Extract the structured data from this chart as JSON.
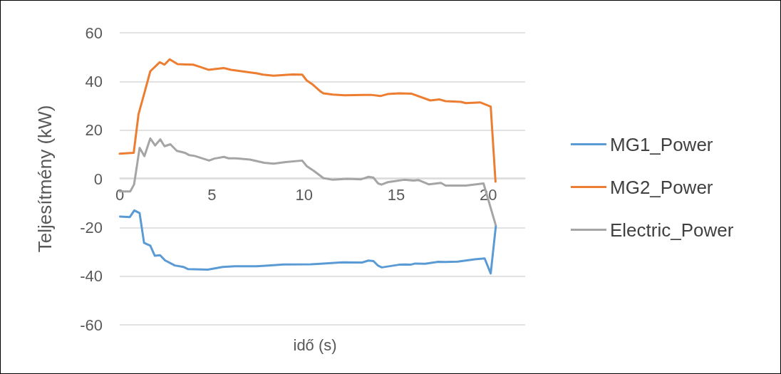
{
  "chart_data": {
    "type": "line",
    "xlabel": "idő (s)",
    "ylabel": "Teljesítmény (kW)",
    "xlim": [
      0,
      22
    ],
    "xticks": [
      0,
      5,
      10,
      15,
      20
    ],
    "ylim": [
      -60,
      60
    ],
    "yticks": [
      -60,
      -40,
      -20,
      0,
      20,
      40,
      60
    ],
    "grid": "y",
    "legend": "right",
    "marker": "none",
    "line_style": "solid",
    "series": [
      {
        "name": "MG1_Power",
        "color": "#5b9bd5",
        "x": [
          0.02,
          0.55,
          0.79,
          1.08,
          1.32,
          1.66,
          1.9,
          2.19,
          2.46,
          2.99,
          3.45,
          3.72,
          4.78,
          5.58,
          6.24,
          7.43,
          8.06,
          8.9,
          10.37,
          10.9,
          12.09,
          13.15,
          13.49,
          13.77,
          14.02,
          14.22,
          15.15,
          15.5,
          15.77,
          16.03,
          16.57,
          17.28,
          17.68,
          18.34,
          19.27,
          19.8,
          20.13,
          20.41
        ],
        "values": [
          -15.5,
          -15.7,
          -13.0,
          -14.1,
          -26.3,
          -27.5,
          -31.6,
          -31.4,
          -33.5,
          -35.6,
          -36.2,
          -37.1,
          -37.3,
          -36.2,
          -35.9,
          -35.9,
          -35.6,
          -35.2,
          -35.1,
          -34.9,
          -34.3,
          -34.4,
          -33.6,
          -33.8,
          -35.7,
          -36.4,
          -35.3,
          -35.2,
          -35.3,
          -34.8,
          -34.9,
          -34.1,
          -34.2,
          -34.0,
          -33.1,
          -32.7,
          -38.9,
          -19.3
        ]
      },
      {
        "name": "MG2_Power",
        "color": "#ed7d31",
        "x": [
          0,
          0.76,
          1.02,
          1.34,
          1.66,
          2.17,
          2.43,
          2.71,
          3.14,
          3.6,
          3.98,
          4.36,
          4.81,
          5.65,
          6.04,
          7.45,
          7.77,
          8.35,
          9.38,
          9.9,
          10.15,
          10.48,
          10.86,
          11.05,
          11.57,
          12.2,
          13.63,
          14.14,
          14.53,
          15.17,
          15.82,
          16.85,
          17.36,
          17.68,
          18.52,
          18.78,
          19.55,
          20.13,
          20.39
        ],
        "values": [
          10.3,
          10.7,
          26.5,
          35.3,
          44.2,
          47.9,
          46.9,
          49.1,
          47.1,
          47.0,
          46.9,
          46.0,
          44.8,
          45.5,
          44.8,
          43.3,
          42.8,
          42.4,
          42.9,
          42.8,
          40.4,
          38.7,
          36.1,
          35.1,
          34.6,
          34.3,
          34.5,
          34.0,
          34.8,
          35.1,
          35.0,
          32.2,
          32.6,
          31.9,
          31.6,
          31.1,
          31.4,
          29.7,
          -1.2
        ]
      },
      {
        "name": "Electric_Power",
        "color": "#a5a5a5",
        "x": [
          0,
          0.57,
          0.78,
          1.08,
          1.34,
          1.66,
          1.92,
          2.2,
          2.43,
          2.75,
          3.1,
          3.53,
          3.78,
          4.07,
          4.85,
          5.13,
          5.65,
          5.91,
          6.3,
          7.07,
          7.84,
          8.35,
          9.0,
          9.9,
          10.15,
          10.54,
          11.05,
          11.57,
          12.34,
          13.1,
          13.5,
          13.76,
          14.02,
          14.2,
          14.53,
          15.43,
          15.95,
          16.2,
          16.78,
          17.43,
          17.68,
          18.78,
          19.74,
          20.4
        ],
        "values": [
          -5.2,
          -5.2,
          -2.3,
          12.7,
          9.3,
          16.6,
          13.7,
          16.2,
          13.4,
          14.2,
          11.5,
          10.7,
          9.7,
          9.4,
          7.5,
          8.3,
          9.0,
          8.4,
          8.4,
          7.9,
          6.6,
          6.2,
          6.9,
          7.5,
          5.2,
          3.2,
          0.3,
          -0.4,
          0,
          -0.2,
          0.8,
          0.5,
          -1.9,
          -2.4,
          -1.4,
          -0.4,
          -0.7,
          -0.5,
          -2.3,
          -1.7,
          -2.8,
          -2.8,
          -1.9,
          -19
        ]
      }
    ]
  }
}
